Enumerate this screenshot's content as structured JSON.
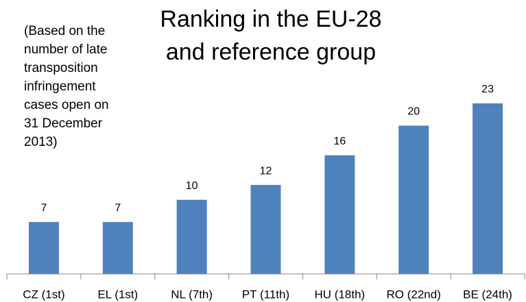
{
  "chart_data": {
    "type": "bar",
    "title": [
      "Ranking in the EU-28",
      "and reference group"
    ],
    "annotation": [
      "(Based on the",
      "number of late",
      "transposition",
      "infringement",
      "cases open on",
      "31 December",
      "2013)"
    ],
    "categories": [
      "CZ (1st)",
      "EL (1st)",
      "NL (7th)",
      "PT (11th)",
      "HU (18th)",
      "RO (22nd)",
      "BE (24th)"
    ],
    "values": [
      7,
      7,
      10,
      12,
      16,
      20,
      23
    ],
    "color": "#4f81bd"
  }
}
